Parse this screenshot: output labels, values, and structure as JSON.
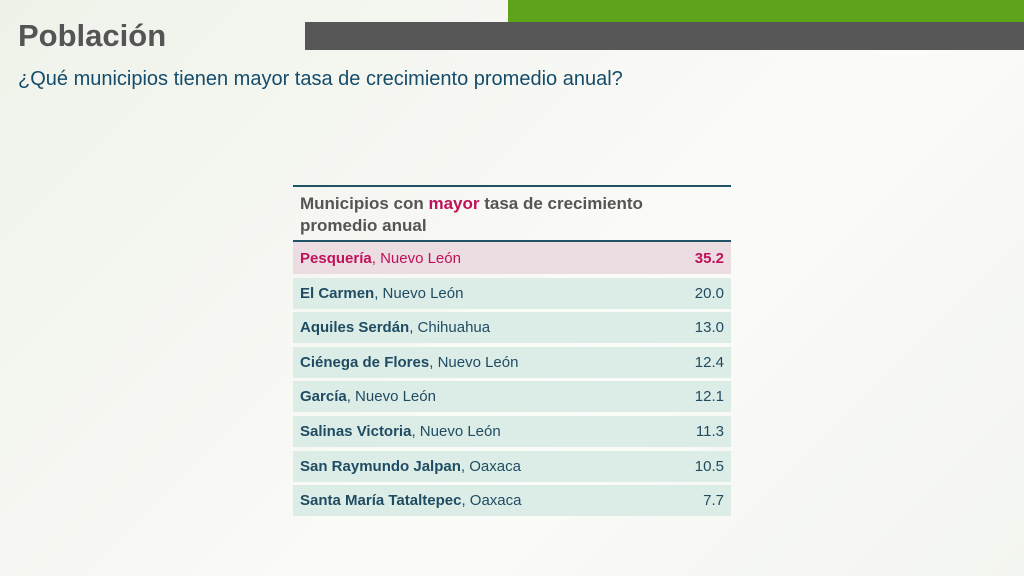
{
  "header": {
    "title": "Población",
    "subtitle": "¿Qué municipios tienen mayor tasa de crecimiento promedio anual?"
  },
  "table": {
    "heading_pre": "Municipios con ",
    "heading_accent": "mayor",
    "heading_post": " tasa de crecimiento promedio anual",
    "rows": [
      {
        "municipio": "Pesquería",
        "estado": "Nuevo León",
        "valor": "35.2"
      },
      {
        "municipio": "El Carmen",
        "estado": "Nuevo León",
        "valor": "20.0"
      },
      {
        "municipio": "Aquiles Serdán",
        "estado": "Chihuahua",
        "valor": "13.0"
      },
      {
        "municipio": "Ciénega de Flores",
        "estado": "Nuevo León",
        "valor": "12.4"
      },
      {
        "municipio": "García",
        "estado": "Nuevo León",
        "valor": "12.1"
      },
      {
        "municipio": "Salinas Victoria",
        "estado": "Nuevo León",
        "valor": "11.3"
      },
      {
        "municipio": "San Raymundo Jalpan",
        "estado": "Oaxaca",
        "valor": "10.5"
      },
      {
        "municipio": "Santa María Tataltepec",
        "estado": "Oaxaca",
        "valor": "7.7"
      }
    ]
  },
  "colors": {
    "accent_green": "#5ea31a",
    "accent_gray": "#575757",
    "highlight_magenta": "#c0115a",
    "text_teal": "#1f4c63",
    "row_bg": "#dcece6",
    "highlight_row_bg": "#ecdde3"
  }
}
